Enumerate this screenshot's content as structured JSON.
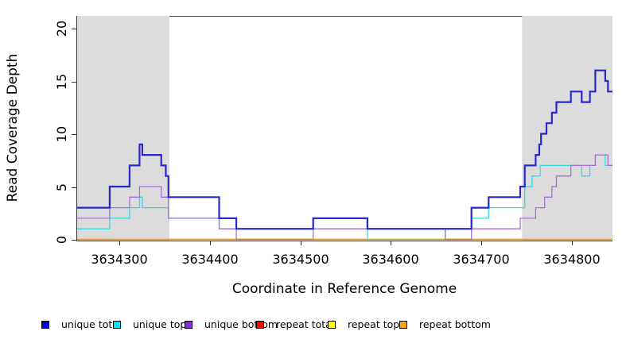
{
  "chart_data": {
    "type": "line",
    "subtype": "step",
    "title": "",
    "xlabel": "Coordinate in Reference Genome",
    "ylabel": "Read Coverage Depth",
    "x_range": [
      3634253,
      3634845
    ],
    "y_range": [
      0,
      21.3
    ],
    "x_ticks": [
      "3634300",
      "3634400",
      "3634500",
      "3634600",
      "3634700",
      "3634800"
    ],
    "x_tick_values": [
      3634300,
      3634400,
      3634500,
      3634600,
      3634700,
      3634800
    ],
    "y_ticks": [
      "0",
      "5",
      "10",
      "15",
      "20"
    ],
    "y_tick_values": [
      0,
      5,
      10,
      15,
      20
    ],
    "grid": false,
    "legend_position": "bottom",
    "shaded_region_color": "#dcdcdc",
    "shaded_regions": [
      [
        3634253,
        3634355
      ],
      [
        3634745,
        3634845
      ]
    ],
    "series": [
      {
        "name": "repeat total",
        "color": "#e01020",
        "width": 1.2,
        "points": [
          [
            3634253,
            0
          ]
        ]
      },
      {
        "name": "repeat top",
        "color": "#ffff00",
        "width": 1.2,
        "points": [
          [
            3634253,
            0
          ]
        ]
      },
      {
        "name": "repeat bottom",
        "color": "#ff9e00",
        "width": 1.7,
        "points": [
          [
            3634253,
            0
          ]
        ]
      },
      {
        "name": "unique top",
        "color": "#30dce2",
        "width": 1.3,
        "points": [
          [
            3634253,
            1
          ],
          [
            3634289,
            2
          ],
          [
            3634311,
            3
          ],
          [
            3634322,
            4
          ],
          [
            3634325,
            3
          ],
          [
            3634354,
            2
          ],
          [
            3634410,
            1
          ],
          [
            3634574,
            0
          ],
          [
            3634660,
            1
          ],
          [
            3634689,
            2
          ],
          [
            3634708,
            3
          ],
          [
            3634748,
            5
          ],
          [
            3634756,
            6
          ],
          [
            3634765,
            7
          ],
          [
            3634811,
            6
          ],
          [
            3634820,
            7
          ],
          [
            3634826,
            8
          ],
          [
            3634837,
            7
          ]
        ]
      },
      {
        "name": "unique bottom",
        "color": "#a36fd9",
        "width": 1.3,
        "points": [
          [
            3634253,
            2
          ],
          [
            3634289,
            3
          ],
          [
            3634311,
            4
          ],
          [
            3634322,
            5
          ],
          [
            3634346,
            4
          ],
          [
            3634354,
            2
          ],
          [
            3634410,
            1
          ],
          [
            3634429,
            0
          ],
          [
            3634514,
            1
          ],
          [
            3634660,
            0
          ],
          [
            3634689,
            1
          ],
          [
            3634743,
            2
          ],
          [
            3634760,
            3
          ],
          [
            3634770,
            4
          ],
          [
            3634778,
            5
          ],
          [
            3634783,
            6
          ],
          [
            3634799,
            7
          ],
          [
            3634826,
            8
          ],
          [
            3634840,
            7
          ]
        ]
      },
      {
        "name": "unique total",
        "color": "#2727cf",
        "width": 2.2,
        "points": [
          [
            3634253,
            3
          ],
          [
            3634289,
            5
          ],
          [
            3634311,
            7
          ],
          [
            3634322,
            9
          ],
          [
            3634325,
            8
          ],
          [
            3634346,
            7
          ],
          [
            3634351,
            6
          ],
          [
            3634354,
            4
          ],
          [
            3634410,
            2
          ],
          [
            3634429,
            1
          ],
          [
            3634514,
            2
          ],
          [
            3634574,
            1
          ],
          [
            3634689,
            3
          ],
          [
            3634708,
            4
          ],
          [
            3634743,
            5
          ],
          [
            3634748,
            7
          ],
          [
            3634760,
            8
          ],
          [
            3634764,
            9
          ],
          [
            3634766,
            10
          ],
          [
            3634772,
            11
          ],
          [
            3634778,
            12
          ],
          [
            3634783,
            13
          ],
          [
            3634799,
            14
          ],
          [
            3634811,
            13
          ],
          [
            3634820,
            14
          ],
          [
            3634826,
            16
          ],
          [
            3634837,
            15
          ],
          [
            3634840,
            14
          ]
        ]
      }
    ],
    "legend": [
      {
        "label": "unique total",
        "color": "#0000d9"
      },
      {
        "label": "unique top",
        "color": "#00e5ee"
      },
      {
        "label": "unique bottom",
        "color": "#8b2bd9"
      },
      {
        "label": "repeat total",
        "color": "#ff0000"
      },
      {
        "label": "repeat top",
        "color": "#ffff00"
      },
      {
        "label": "repeat bottom",
        "color": "#ffa500"
      }
    ]
  }
}
